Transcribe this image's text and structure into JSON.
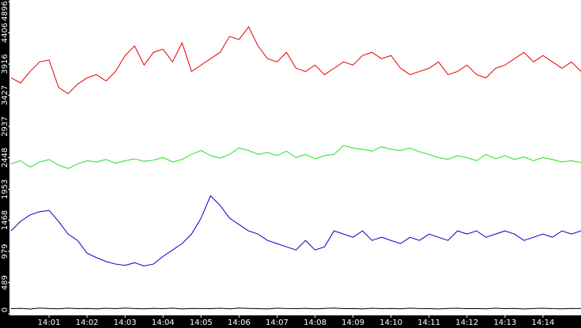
{
  "chart_data": {
    "type": "line",
    "x": [
      840,
      840.25,
      840.5,
      840.75,
      841,
      841.25,
      841.5,
      841.75,
      842,
      842.25,
      842.5,
      842.75,
      843,
      843.25,
      843.5,
      843.75,
      844,
      844.25,
      844.5,
      844.75,
      845,
      845.25,
      845.5,
      845.75,
      846,
      846.25,
      846.5,
      846.75,
      847,
      847.25,
      847.5,
      847.75,
      848,
      848.25,
      848.5,
      848.75,
      849,
      849.25,
      849.5,
      849.75,
      850,
      850.25,
      850.5,
      850.75,
      851,
      851.25,
      851.5,
      851.75,
      852,
      852.25,
      852.5,
      852.75,
      853,
      853.25,
      853.5,
      853.75,
      854,
      854.25,
      854.5,
      854.75,
      855
    ],
    "xlim": [
      840,
      855
    ],
    "xticks": [
      {
        "value": 841,
        "label": "14:01"
      },
      {
        "value": 842,
        "label": "14:02"
      },
      {
        "value": 843,
        "label": "14:03"
      },
      {
        "value": 844,
        "label": "14:04"
      },
      {
        "value": 845,
        "label": "14:05"
      },
      {
        "value": 846,
        "label": "14:06"
      },
      {
        "value": 847,
        "label": "14:07"
      },
      {
        "value": 848,
        "label": "14:08"
      },
      {
        "value": 849,
        "label": "14:09"
      },
      {
        "value": 850,
        "label": "14:10"
      },
      {
        "value": 851,
        "label": "14:11"
      },
      {
        "value": 852,
        "label": "14:12"
      },
      {
        "value": 853,
        "label": "14:13"
      },
      {
        "value": 854,
        "label": "14:14"
      }
    ],
    "ylim": [
      0,
      4896
    ],
    "yticks": [
      0,
      489,
      979,
      1468,
      1953,
      2448,
      2937,
      3427,
      3916,
      4406,
      4896
    ],
    "series": [
      {
        "color": "#e00000",
        "values": [
          3700,
          3620,
          3800,
          3950,
          3980,
          3550,
          3450,
          3600,
          3700,
          3750,
          3650,
          3800,
          4050,
          4200,
          3900,
          4100,
          4150,
          3950,
          4250,
          3800,
          3900,
          4000,
          4100,
          4350,
          4300,
          4500,
          4200,
          4000,
          3950,
          4100,
          3850,
          3800,
          3900,
          3750,
          3850,
          3950,
          3900,
          4050,
          4100,
          4000,
          4050,
          3850,
          3750,
          3800,
          3850,
          3950,
          3750,
          3800,
          3900,
          3750,
          3700,
          3850,
          3900,
          4000,
          4100,
          3950,
          4050,
          3950,
          3850,
          3950,
          3800
        ]
      },
      {
        "color": "#22e022",
        "values": [
          2350,
          2400,
          2300,
          2380,
          2420,
          2330,
          2280,
          2350,
          2400,
          2380,
          2420,
          2360,
          2400,
          2430,
          2390,
          2410,
          2450,
          2380,
          2420,
          2500,
          2560,
          2480,
          2440,
          2500,
          2600,
          2560,
          2500,
          2530,
          2480,
          2550,
          2450,
          2500,
          2430,
          2480,
          2500,
          2640,
          2600,
          2580,
          2550,
          2620,
          2580,
          2560,
          2600,
          2540,
          2500,
          2450,
          2420,
          2480,
          2450,
          2400,
          2500,
          2430,
          2480,
          2420,
          2460,
          2400,
          2450,
          2420,
          2380,
          2400,
          2370
        ]
      },
      {
        "color": "#0000c8",
        "values": [
          1300,
          1450,
          1550,
          1600,
          1620,
          1450,
          1250,
          1150,
          950,
          880,
          820,
          780,
          760,
          800,
          750,
          780,
          900,
          1000,
          1100,
          1250,
          1500,
          1850,
          1700,
          1500,
          1400,
          1300,
          1250,
          1150,
          1100,
          1050,
          1000,
          1150,
          1000,
          1050,
          1300,
          1250,
          1200,
          1300,
          1150,
          1200,
          1150,
          1100,
          1200,
          1150,
          1250,
          1200,
          1150,
          1300,
          1250,
          1300,
          1200,
          1250,
          1300,
          1250,
          1150,
          1200,
          1250,
          1200,
          1300,
          1250,
          1300
        ]
      },
      {
        "color": "#000000",
        "values": [
          80,
          85,
          75,
          90,
          82,
          78,
          88,
          80,
          84,
          76,
          86,
          80,
          90,
          82,
          78,
          85,
          80,
          88,
          76,
          84,
          82,
          80,
          86,
          78,
          90,
          84,
          80,
          76,
          88,
          82,
          80,
          85,
          78,
          84,
          90,
          80,
          82,
          76,
          86,
          80,
          84,
          78,
          88,
          82,
          80,
          76,
          84,
          86,
          80,
          82,
          78,
          88,
          80,
          84,
          76,
          82,
          86,
          80,
          78,
          84,
          82
        ]
      }
    ]
  }
}
